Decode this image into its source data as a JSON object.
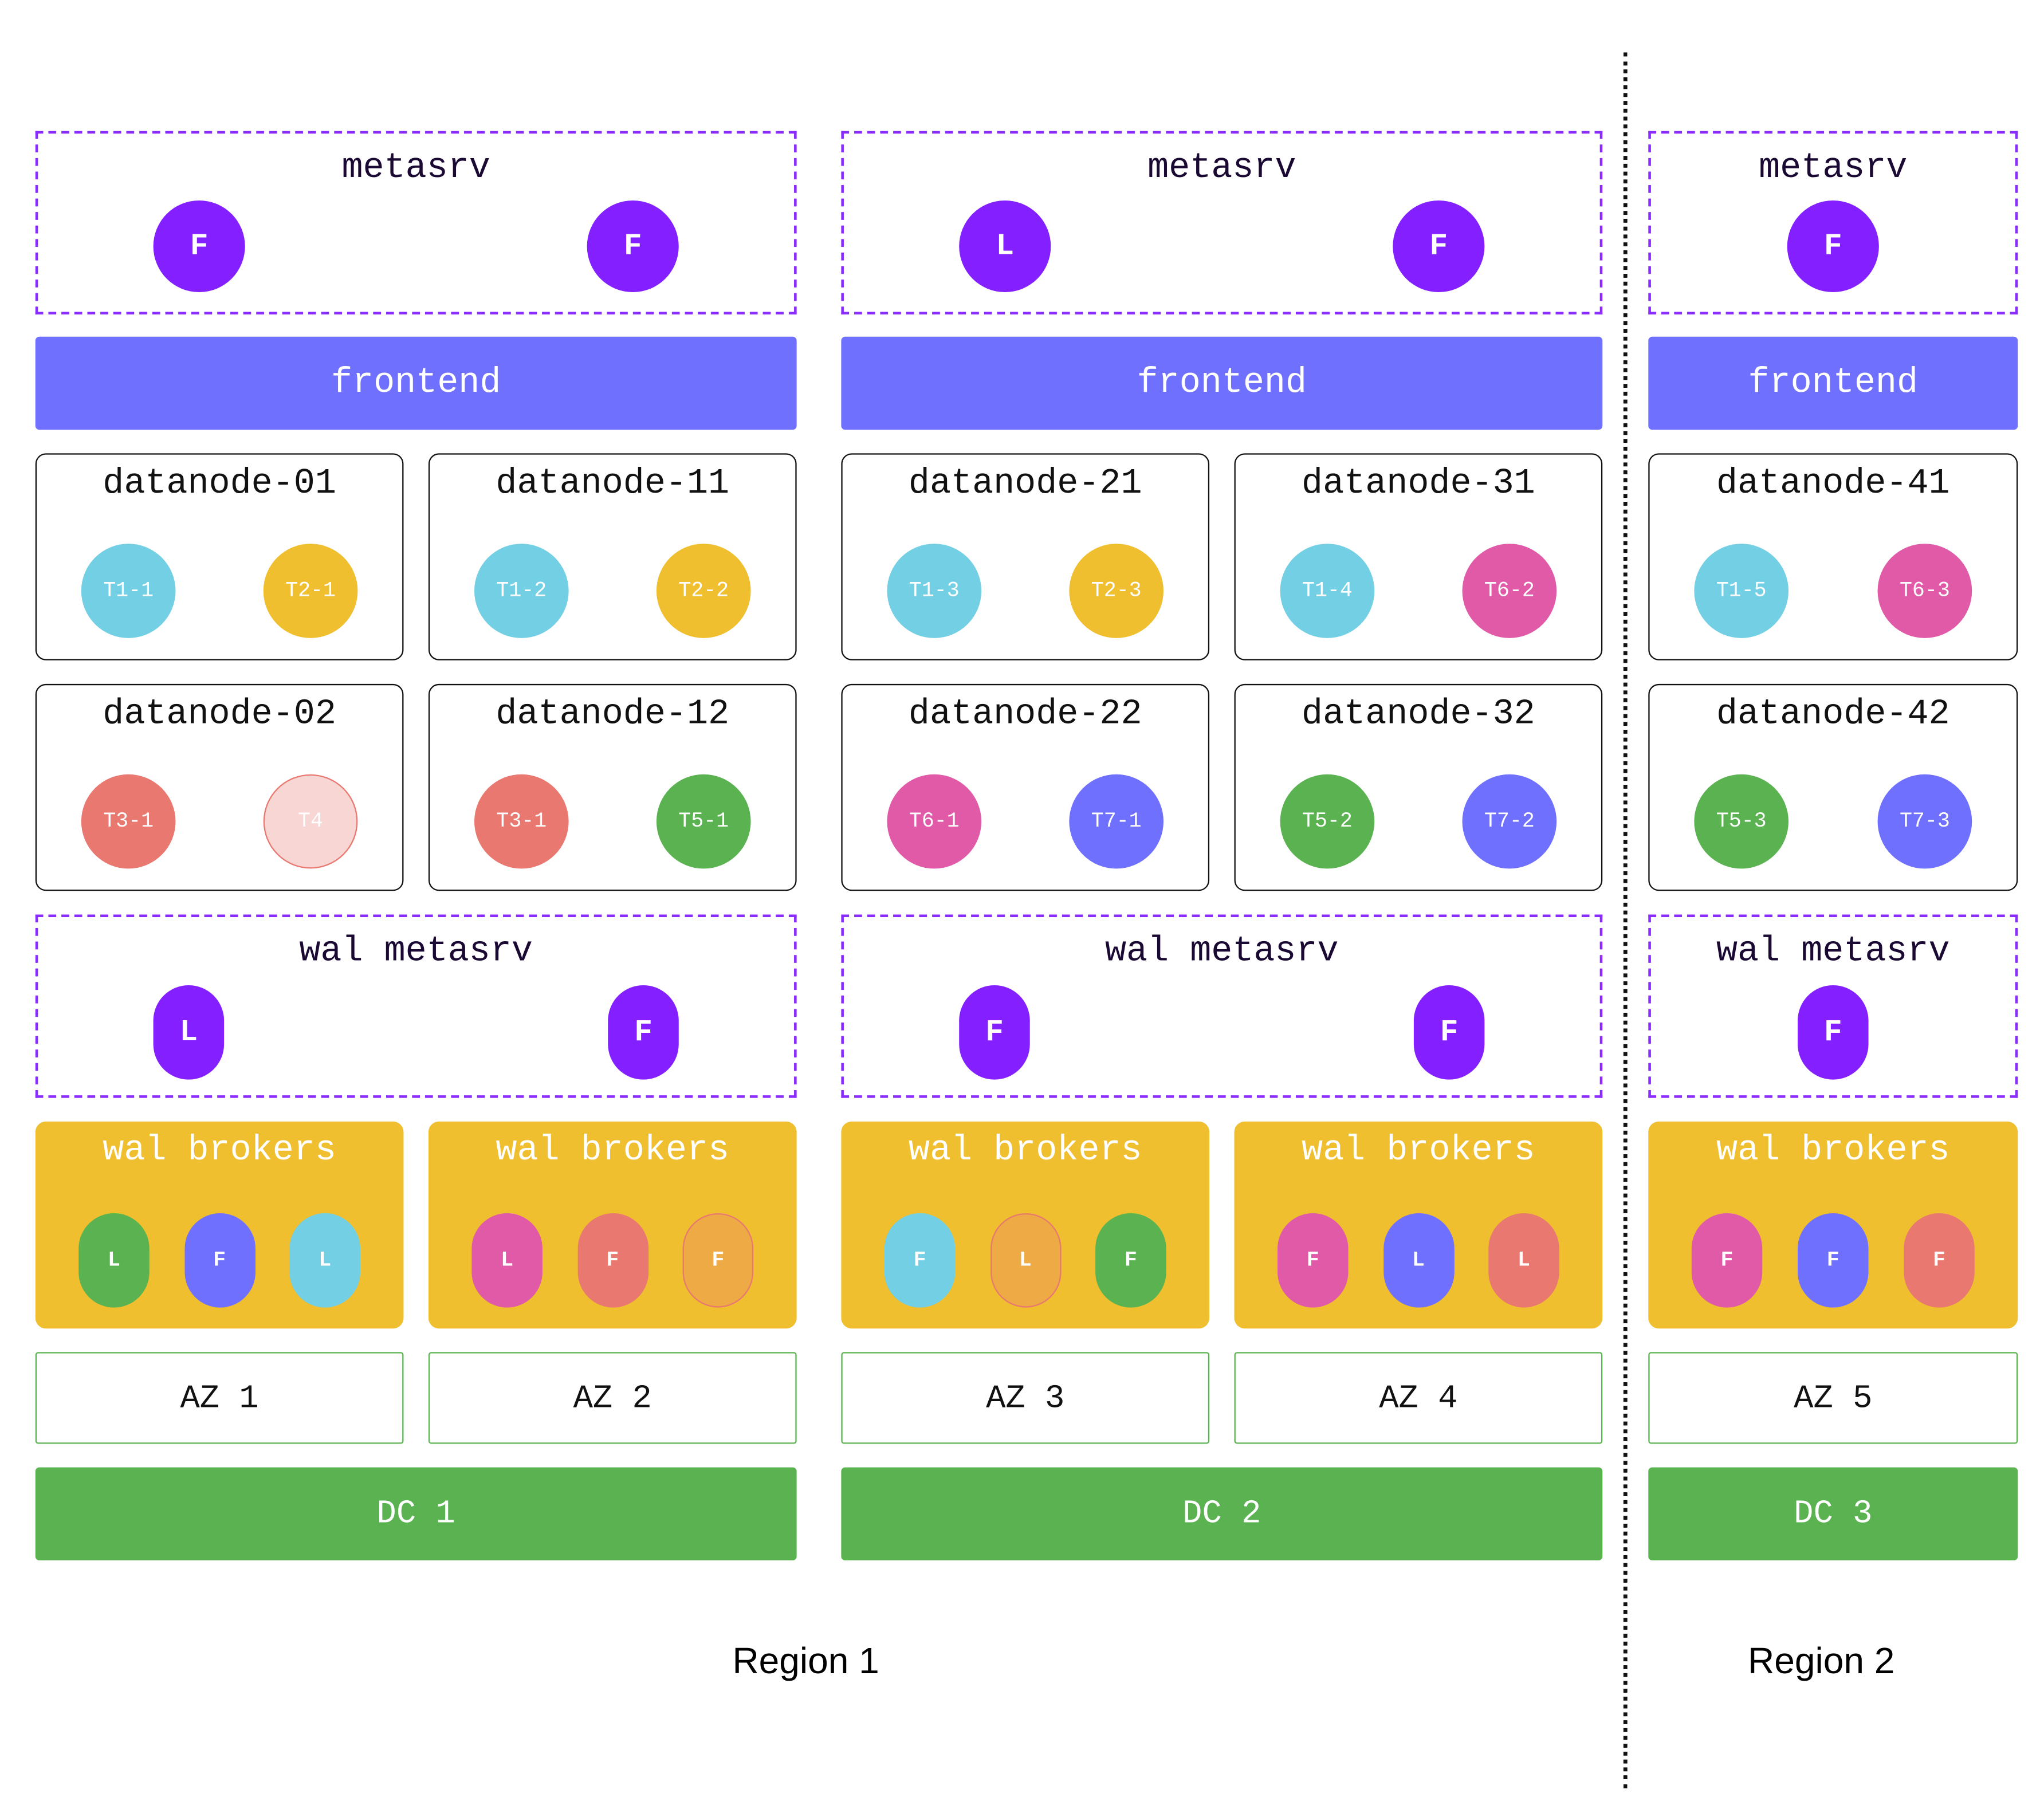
{
  "colors": {
    "purple": "#8420ff",
    "frontend": "#7070ff",
    "cyan": "#72cfe4",
    "yellow": "#efbf2f",
    "pink": "#e05aa8",
    "red": "#e87870",
    "green": "#5ab350",
    "blue": "#7070ff",
    "faded_red": "#f8d6d4",
    "orange": "#edaa45"
  },
  "regions": [
    {
      "label": "Region 1"
    },
    {
      "label": "Region 2"
    }
  ],
  "datacenters": [
    {
      "label": "DC 1",
      "region": "Region 1",
      "metasrv": {
        "title": "metasrv",
        "nodes": [
          "F",
          "F"
        ]
      },
      "frontend": "frontend",
      "wal_metasrv": {
        "title": "wal metasrv",
        "nodes": [
          "L",
          "F"
        ]
      },
      "azs": [
        {
          "label": "AZ 1",
          "datanodes": [
            {
              "name": "datanode-01",
              "tables": [
                {
                  "label": "T1-1",
                  "color": "cyan"
                },
                {
                  "label": "T2-1",
                  "color": "yellow"
                }
              ]
            },
            {
              "name": "datanode-02",
              "tables": [
                {
                  "label": "T3-1",
                  "color": "red"
                },
                {
                  "label": "T4",
                  "color": "faded_red",
                  "outlined": true
                }
              ]
            }
          ],
          "brokers": {
            "title": "wal brokers",
            "nodes": [
              {
                "label": "L",
                "color": "green"
              },
              {
                "label": "F",
                "color": "blue"
              },
              {
                "label": "L",
                "color": "cyan"
              }
            ]
          }
        },
        {
          "label": "AZ 2",
          "datanodes": [
            {
              "name": "datanode-11",
              "tables": [
                {
                  "label": "T1-2",
                  "color": "cyan"
                },
                {
                  "label": "T2-2",
                  "color": "yellow"
                }
              ]
            },
            {
              "name": "datanode-12",
              "tables": [
                {
                  "label": "T3-1",
                  "color": "red"
                },
                {
                  "label": "T5-1",
                  "color": "green"
                }
              ]
            }
          ],
          "brokers": {
            "title": "wal brokers",
            "nodes": [
              {
                "label": "L",
                "color": "pink"
              },
              {
                "label": "F",
                "color": "red"
              },
              {
                "label": "F",
                "color": "orange",
                "outlined": true
              }
            ]
          }
        }
      ]
    },
    {
      "label": "DC 2",
      "region": "Region 1",
      "metasrv": {
        "title": "metasrv",
        "nodes": [
          "L",
          "F"
        ]
      },
      "frontend": "frontend",
      "wal_metasrv": {
        "title": "wal metasrv",
        "nodes": [
          "F",
          "F"
        ]
      },
      "azs": [
        {
          "label": "AZ 3",
          "datanodes": [
            {
              "name": "datanode-21",
              "tables": [
                {
                  "label": "T1-3",
                  "color": "cyan"
                },
                {
                  "label": "T2-3",
                  "color": "yellow"
                }
              ]
            },
            {
              "name": "datanode-22",
              "tables": [
                {
                  "label": "T6-1",
                  "color": "pink"
                },
                {
                  "label": "T7-1",
                  "color": "blue"
                }
              ]
            }
          ],
          "brokers": {
            "title": "wal brokers",
            "nodes": [
              {
                "label": "F",
                "color": "cyan"
              },
              {
                "label": "L",
                "color": "orange",
                "outlined": true
              },
              {
                "label": "F",
                "color": "green"
              }
            ]
          }
        },
        {
          "label": "AZ 4",
          "datanodes": [
            {
              "name": "datanode-31",
              "tables": [
                {
                  "label": "T1-4",
                  "color": "cyan"
                },
                {
                  "label": "T6-2",
                  "color": "pink"
                }
              ]
            },
            {
              "name": "datanode-32",
              "tables": [
                {
                  "label": "T5-2",
                  "color": "green"
                },
                {
                  "label": "T7-2",
                  "color": "blue"
                }
              ]
            }
          ],
          "brokers": {
            "title": "wal brokers",
            "nodes": [
              {
                "label": "F",
                "color": "pink"
              },
              {
                "label": "L",
                "color": "blue"
              },
              {
                "label": "L",
                "color": "red"
              }
            ]
          }
        }
      ]
    },
    {
      "label": "DC 3",
      "region": "Region 2",
      "metasrv": {
        "title": "metasrv",
        "nodes": [
          "F"
        ]
      },
      "frontend": "frontend",
      "wal_metasrv": {
        "title": "wal metasrv",
        "nodes": [
          "F"
        ]
      },
      "azs": [
        {
          "label": "AZ 5",
          "datanodes": [
            {
              "name": "datanode-41",
              "tables": [
                {
                  "label": "T1-5",
                  "color": "cyan"
                },
                {
                  "label": "T6-3",
                  "color": "pink"
                }
              ]
            },
            {
              "name": "datanode-42",
              "tables": [
                {
                  "label": "T5-3",
                  "color": "green"
                },
                {
                  "label": "T7-3",
                  "color": "blue"
                }
              ]
            }
          ],
          "brokers": {
            "title": "wal brokers",
            "nodes": [
              {
                "label": "F",
                "color": "pink"
              },
              {
                "label": "F",
                "color": "blue"
              },
              {
                "label": "F",
                "color": "red"
              }
            ]
          }
        }
      ]
    }
  ]
}
